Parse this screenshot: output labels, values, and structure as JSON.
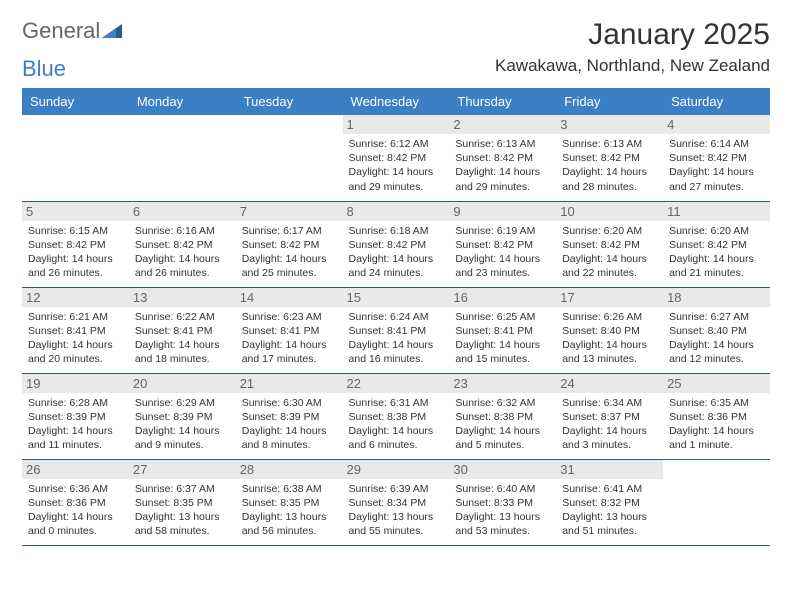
{
  "brand": {
    "part1": "General",
    "part2": "Blue"
  },
  "title": "January 2025",
  "location": "Kawakawa, Northland, New Zealand",
  "colors": {
    "header_bg": "#3b7fc4",
    "row_border": "#2f5a86",
    "daynum_bg": "#e9e9e9"
  },
  "weekdays": [
    "Sunday",
    "Monday",
    "Tuesday",
    "Wednesday",
    "Thursday",
    "Friday",
    "Saturday"
  ],
  "weeks": [
    [
      null,
      null,
      null,
      {
        "n": "1",
        "sr": "6:12 AM",
        "ss": "8:42 PM",
        "dl": "14 hours and 29 minutes."
      },
      {
        "n": "2",
        "sr": "6:13 AM",
        "ss": "8:42 PM",
        "dl": "14 hours and 29 minutes."
      },
      {
        "n": "3",
        "sr": "6:13 AM",
        "ss": "8:42 PM",
        "dl": "14 hours and 28 minutes."
      },
      {
        "n": "4",
        "sr": "6:14 AM",
        "ss": "8:42 PM",
        "dl": "14 hours and 27 minutes."
      }
    ],
    [
      {
        "n": "5",
        "sr": "6:15 AM",
        "ss": "8:42 PM",
        "dl": "14 hours and 26 minutes."
      },
      {
        "n": "6",
        "sr": "6:16 AM",
        "ss": "8:42 PM",
        "dl": "14 hours and 26 minutes."
      },
      {
        "n": "7",
        "sr": "6:17 AM",
        "ss": "8:42 PM",
        "dl": "14 hours and 25 minutes."
      },
      {
        "n": "8",
        "sr": "6:18 AM",
        "ss": "8:42 PM",
        "dl": "14 hours and 24 minutes."
      },
      {
        "n": "9",
        "sr": "6:19 AM",
        "ss": "8:42 PM",
        "dl": "14 hours and 23 minutes."
      },
      {
        "n": "10",
        "sr": "6:20 AM",
        "ss": "8:42 PM",
        "dl": "14 hours and 22 minutes."
      },
      {
        "n": "11",
        "sr": "6:20 AM",
        "ss": "8:42 PM",
        "dl": "14 hours and 21 minutes."
      }
    ],
    [
      {
        "n": "12",
        "sr": "6:21 AM",
        "ss": "8:41 PM",
        "dl": "14 hours and 20 minutes."
      },
      {
        "n": "13",
        "sr": "6:22 AM",
        "ss": "8:41 PM",
        "dl": "14 hours and 18 minutes."
      },
      {
        "n": "14",
        "sr": "6:23 AM",
        "ss": "8:41 PM",
        "dl": "14 hours and 17 minutes."
      },
      {
        "n": "15",
        "sr": "6:24 AM",
        "ss": "8:41 PM",
        "dl": "14 hours and 16 minutes."
      },
      {
        "n": "16",
        "sr": "6:25 AM",
        "ss": "8:41 PM",
        "dl": "14 hours and 15 minutes."
      },
      {
        "n": "17",
        "sr": "6:26 AM",
        "ss": "8:40 PM",
        "dl": "14 hours and 13 minutes."
      },
      {
        "n": "18",
        "sr": "6:27 AM",
        "ss": "8:40 PM",
        "dl": "14 hours and 12 minutes."
      }
    ],
    [
      {
        "n": "19",
        "sr": "6:28 AM",
        "ss": "8:39 PM",
        "dl": "14 hours and 11 minutes."
      },
      {
        "n": "20",
        "sr": "6:29 AM",
        "ss": "8:39 PM",
        "dl": "14 hours and 9 minutes."
      },
      {
        "n": "21",
        "sr": "6:30 AM",
        "ss": "8:39 PM",
        "dl": "14 hours and 8 minutes."
      },
      {
        "n": "22",
        "sr": "6:31 AM",
        "ss": "8:38 PM",
        "dl": "14 hours and 6 minutes."
      },
      {
        "n": "23",
        "sr": "6:32 AM",
        "ss": "8:38 PM",
        "dl": "14 hours and 5 minutes."
      },
      {
        "n": "24",
        "sr": "6:34 AM",
        "ss": "8:37 PM",
        "dl": "14 hours and 3 minutes."
      },
      {
        "n": "25",
        "sr": "6:35 AM",
        "ss": "8:36 PM",
        "dl": "14 hours and 1 minute."
      }
    ],
    [
      {
        "n": "26",
        "sr": "6:36 AM",
        "ss": "8:36 PM",
        "dl": "14 hours and 0 minutes."
      },
      {
        "n": "27",
        "sr": "6:37 AM",
        "ss": "8:35 PM",
        "dl": "13 hours and 58 minutes."
      },
      {
        "n": "28",
        "sr": "6:38 AM",
        "ss": "8:35 PM",
        "dl": "13 hours and 56 minutes."
      },
      {
        "n": "29",
        "sr": "6:39 AM",
        "ss": "8:34 PM",
        "dl": "13 hours and 55 minutes."
      },
      {
        "n": "30",
        "sr": "6:40 AM",
        "ss": "8:33 PM",
        "dl": "13 hours and 53 minutes."
      },
      {
        "n": "31",
        "sr": "6:41 AM",
        "ss": "8:32 PM",
        "dl": "13 hours and 51 minutes."
      },
      null
    ]
  ]
}
